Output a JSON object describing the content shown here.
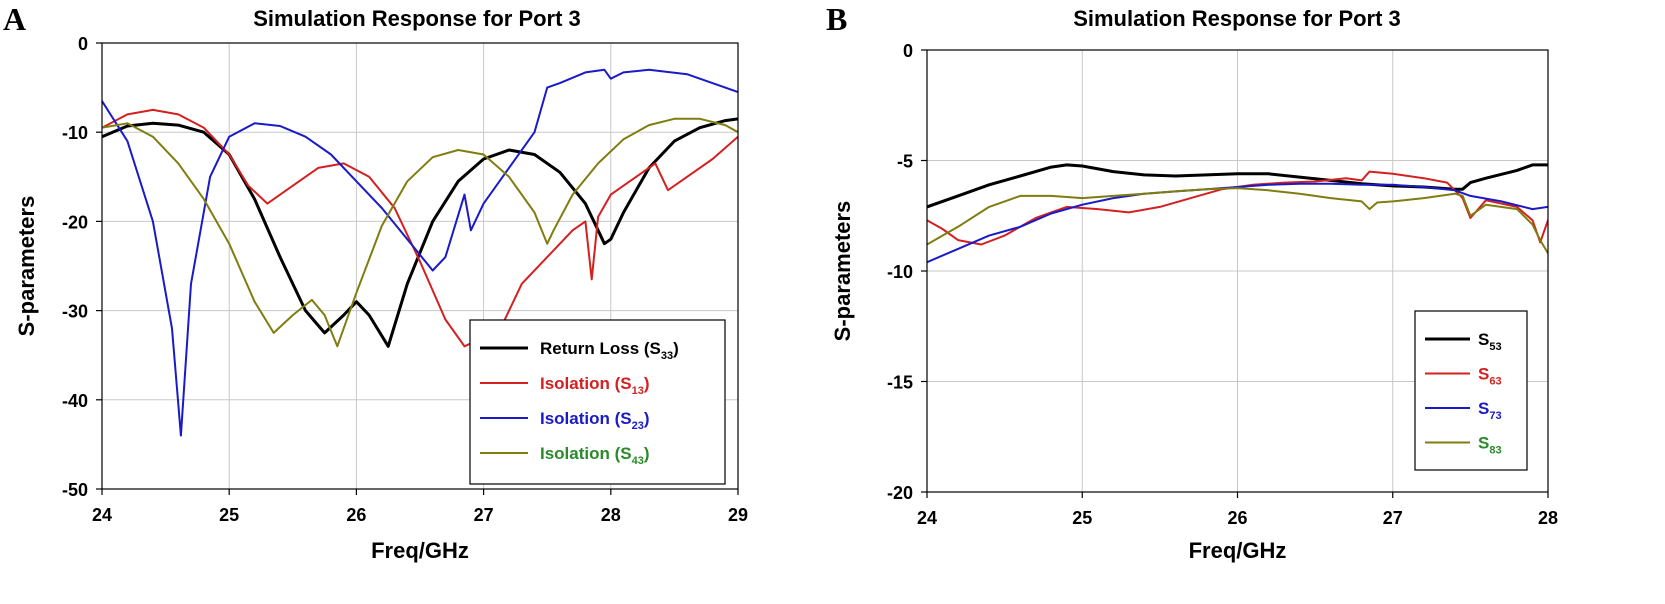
{
  "chart_data": [
    {
      "panel_label": "A",
      "type": "line",
      "title": "Simulation Response for Port 3",
      "xlabel": "Freq/GHz",
      "ylabel": "S-parameters",
      "xlim": [
        24,
        29
      ],
      "ylim": [
        -50,
        0
      ],
      "xticks": [
        24,
        25,
        26,
        27,
        28,
        29
      ],
      "yticks": [
        0,
        -10,
        -20,
        -30,
        -40,
        -50
      ],
      "grid": true,
      "legend_position": "bottom-right",
      "series": [
        {
          "name": "Return Loss (S33)",
          "label_main": "Return Loss (S",
          "label_sub": "33",
          "label_end": ")",
          "color": "#000000",
          "label_color": "#000000",
          "x": [
            24.0,
            24.2,
            24.4,
            24.6,
            24.8,
            25.0,
            25.2,
            25.4,
            25.6,
            25.75,
            25.9,
            26.0,
            26.1,
            26.25,
            26.4,
            26.6,
            26.8,
            27.0,
            27.2,
            27.4,
            27.6,
            27.8,
            27.9,
            27.95,
            28.0,
            28.1,
            28.3,
            28.5,
            28.7,
            28.9,
            29.0
          ],
          "y": [
            -10.5,
            -9.3,
            -9.0,
            -9.2,
            -10.0,
            -12.5,
            -17.5,
            -24.0,
            -30.0,
            -32.5,
            -30.5,
            -29.0,
            -30.5,
            -34.0,
            -27.0,
            -20.0,
            -15.5,
            -13.0,
            -12.0,
            -12.5,
            -14.5,
            -18.0,
            -21.0,
            -22.5,
            -22.0,
            -19.0,
            -14.0,
            -11.0,
            -9.5,
            -8.7,
            -8.5
          ]
        },
        {
          "name": "Isolation (S13)",
          "label_main": "Isolation (S",
          "label_sub": "13",
          "label_end": ")",
          "color": "#d42020",
          "label_color": "#d42020",
          "x": [
            24.0,
            24.2,
            24.4,
            24.6,
            24.8,
            25.0,
            25.15,
            25.3,
            25.5,
            25.7,
            25.9,
            26.1,
            26.3,
            26.5,
            26.7,
            26.85,
            27.0,
            27.15,
            27.3,
            27.5,
            27.7,
            27.8,
            27.85,
            27.9,
            28.0,
            28.2,
            28.35,
            28.45,
            28.6,
            28.8,
            29.0
          ],
          "y": [
            -9.5,
            -8.0,
            -7.5,
            -8.0,
            -9.5,
            -12.5,
            -16.0,
            -18.0,
            -16.0,
            -14.0,
            -13.5,
            -15.0,
            -18.5,
            -24.5,
            -31.0,
            -34.0,
            -33.0,
            -31.5,
            -27.0,
            -24.0,
            -21.0,
            -20.0,
            -26.5,
            -19.5,
            -17.0,
            -15.0,
            -13.5,
            -16.5,
            -15.0,
            -13.0,
            -10.5
          ]
        },
        {
          "name": "Isolation (S23)",
          "label_main": "Isolation (S",
          "label_sub": "23",
          "label_end": ")",
          "color": "#1a1ac8",
          "label_color": "#1a1ac8",
          "x": [
            24.0,
            24.2,
            24.4,
            24.55,
            24.62,
            24.7,
            24.85,
            25.0,
            25.2,
            25.4,
            25.6,
            25.8,
            26.0,
            26.2,
            26.4,
            26.6,
            26.7,
            26.85,
            26.9,
            27.0,
            27.2,
            27.4,
            27.5,
            27.6,
            27.8,
            27.95,
            28.0,
            28.1,
            28.3,
            28.6,
            29.0
          ],
          "y": [
            -6.5,
            -11.0,
            -20.0,
            -32.0,
            -44.0,
            -27.0,
            -15.0,
            -10.5,
            -9.0,
            -9.3,
            -10.5,
            -12.5,
            -15.5,
            -18.5,
            -22.0,
            -25.5,
            -24.0,
            -17.0,
            -21.0,
            -18.0,
            -14.0,
            -10.0,
            -5.0,
            -4.5,
            -3.3,
            -3.0,
            -4.0,
            -3.3,
            -3.0,
            -3.5,
            -5.5
          ]
        },
        {
          "name": "Isolation (S43)",
          "label_main": "Isolation (S",
          "label_sub": "43",
          "label_end": ")",
          "color": "#807d10",
          "label_color": "#2a8a2a",
          "x": [
            24.0,
            24.2,
            24.4,
            24.6,
            24.8,
            25.0,
            25.2,
            25.35,
            25.5,
            25.65,
            25.75,
            25.85,
            26.0,
            26.2,
            26.4,
            26.6,
            26.8,
            27.0,
            27.2,
            27.4,
            27.5,
            27.55,
            27.7,
            27.9,
            28.1,
            28.3,
            28.5,
            28.7,
            28.9,
            29.0
          ],
          "y": [
            -9.5,
            -9.0,
            -10.5,
            -13.5,
            -17.5,
            -22.5,
            -29.0,
            -32.5,
            -30.5,
            -28.8,
            -30.5,
            -34.0,
            -28.0,
            -20.5,
            -15.5,
            -12.8,
            -12.0,
            -12.5,
            -15.0,
            -19.0,
            -22.5,
            -21.0,
            -17.0,
            -13.5,
            -10.8,
            -9.2,
            -8.5,
            -8.5,
            -9.2,
            -10.0
          ]
        }
      ]
    },
    {
      "panel_label": "B",
      "type": "line",
      "title": "Simulation Response for Port 3",
      "xlabel": "Freq/GHz",
      "ylabel": "S-parameters",
      "xlim": [
        24,
        28
      ],
      "ylim": [
        -20,
        0
      ],
      "xticks": [
        24,
        25,
        26,
        27,
        28
      ],
      "yticks": [
        0,
        -5,
        -10,
        -15,
        -20
      ],
      "grid": true,
      "legend_position": "bottom-right",
      "series": [
        {
          "name": "S53",
          "label_main": "S",
          "label_sub": "53",
          "label_end": "",
          "color": "#000000",
          "label_color": "#000000",
          "x": [
            24.0,
            24.2,
            24.4,
            24.6,
            24.8,
            24.9,
            25.0,
            25.2,
            25.4,
            25.6,
            25.8,
            26.0,
            26.2,
            26.4,
            26.6,
            26.8,
            27.0,
            27.2,
            27.4,
            27.45,
            27.5,
            27.6,
            27.8,
            27.9,
            28.0
          ],
          "y": [
            -7.1,
            -6.6,
            -6.1,
            -5.7,
            -5.3,
            -5.2,
            -5.25,
            -5.5,
            -5.65,
            -5.7,
            -5.65,
            -5.6,
            -5.6,
            -5.75,
            -5.9,
            -6.05,
            -6.15,
            -6.2,
            -6.3,
            -6.3,
            -6.0,
            -5.8,
            -5.45,
            -5.2,
            -5.2
          ]
        },
        {
          "name": "S63",
          "label_main": "S",
          "label_sub": "63",
          "label_end": "",
          "color": "#d42020",
          "label_color": "#d42020",
          "x": [
            24.0,
            24.1,
            24.2,
            24.35,
            24.5,
            24.7,
            24.9,
            25.1,
            25.3,
            25.5,
            25.7,
            25.9,
            26.1,
            26.3,
            26.5,
            26.7,
            26.8,
            26.85,
            27.0,
            27.2,
            27.35,
            27.45,
            27.5,
            27.6,
            27.8,
            27.9,
            27.95,
            28.0
          ],
          "y": [
            -7.7,
            -8.1,
            -8.6,
            -8.8,
            -8.4,
            -7.6,
            -7.1,
            -7.2,
            -7.35,
            -7.1,
            -6.7,
            -6.3,
            -6.1,
            -6.0,
            -5.95,
            -5.8,
            -5.9,
            -5.5,
            -5.6,
            -5.8,
            -6.0,
            -6.7,
            -7.6,
            -6.8,
            -7.1,
            -7.7,
            -8.7,
            -7.7
          ]
        },
        {
          "name": "S73",
          "label_main": "S",
          "label_sub": "73",
          "label_end": "",
          "color": "#1a1ac8",
          "label_color": "#1a1ac8",
          "x": [
            24.0,
            24.2,
            24.4,
            24.6,
            24.8,
            25.0,
            25.2,
            25.4,
            25.6,
            25.8,
            26.0,
            26.2,
            26.4,
            26.6,
            26.8,
            27.0,
            27.2,
            27.4,
            27.5,
            27.7,
            27.9,
            28.0
          ],
          "y": [
            -9.6,
            -9.0,
            -8.4,
            -8.0,
            -7.4,
            -7.0,
            -6.7,
            -6.5,
            -6.4,
            -6.3,
            -6.2,
            -6.1,
            -6.05,
            -6.05,
            -6.1,
            -6.1,
            -6.2,
            -6.35,
            -6.6,
            -6.85,
            -7.2,
            -7.1
          ]
        },
        {
          "name": "S83",
          "label_main": "S",
          "label_sub": "83",
          "label_end": "",
          "color": "#807d10",
          "label_color": "#2a8a2a",
          "x": [
            24.0,
            24.2,
            24.4,
            24.6,
            24.8,
            25.0,
            25.2,
            25.4,
            25.6,
            25.8,
            26.0,
            26.2,
            26.4,
            26.6,
            26.8,
            26.85,
            26.9,
            27.0,
            27.2,
            27.4,
            27.45,
            27.5,
            27.6,
            27.8,
            27.9,
            27.95,
            28.0
          ],
          "y": [
            -8.8,
            -8.0,
            -7.1,
            -6.6,
            -6.6,
            -6.7,
            -6.6,
            -6.5,
            -6.4,
            -6.3,
            -6.25,
            -6.35,
            -6.5,
            -6.7,
            -6.85,
            -7.2,
            -6.9,
            -6.85,
            -6.7,
            -6.5,
            -6.6,
            -7.5,
            -7.0,
            -7.2,
            -7.9,
            -8.6,
            -9.2
          ]
        }
      ]
    }
  ]
}
